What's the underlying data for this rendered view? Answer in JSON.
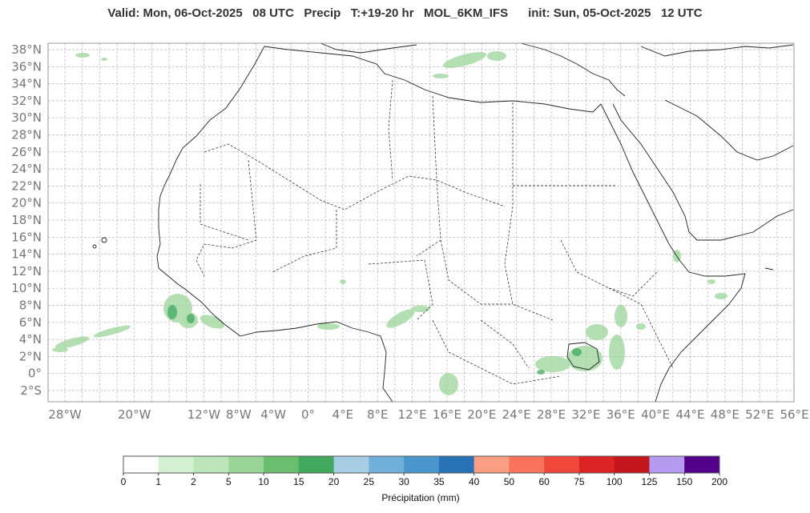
{
  "header": {
    "valid_text": "Valid: Mon, 06-Oct-2025   08 UTC   Precip   T:+19-20 hr   MOL_6KM_IFS      init: Sun, 05-Oct-2025   12 UTC"
  },
  "map": {
    "lat_labels": [
      "38°N",
      "36°N",
      "34°N",
      "32°N",
      "30°N",
      "28°N",
      "26°N",
      "24°N",
      "22°N",
      "20°N",
      "18°N",
      "16°N",
      "14°N",
      "12°N",
      "10°N",
      "8°N",
      "6°N",
      "4°N",
      "2°N",
      "0°",
      "2°S"
    ],
    "lon_labels": [
      "28°W",
      "20°W",
      "12°W",
      "8°W",
      "4°W",
      "0°",
      "4°E",
      "8°E",
      "12°E",
      "16°E",
      "20°E",
      "24°E",
      "28°E",
      "32°E",
      "36°E",
      "40°E",
      "44°E",
      "48°E",
      "52°E",
      "56°E"
    ],
    "grid": true
  },
  "colorbar": {
    "title": "Précipitation (mm)",
    "ticks": [
      "0",
      "1",
      "2",
      "5",
      "10",
      "15",
      "20",
      "25",
      "30",
      "35",
      "40",
      "50",
      "60",
      "75",
      "100",
      "125",
      "150",
      "200"
    ],
    "colors": [
      "#ffffff",
      "#d3f0d2",
      "#bce6b9",
      "#9ad598",
      "#6abf6e",
      "#41a95e",
      "#a6cde4",
      "#6fb0da",
      "#4a96cc",
      "#2873b8",
      "#fb9e84",
      "#f8735a",
      "#ef4838",
      "#dc2425",
      "#c3161c",
      "#b59bf0",
      "#53008a"
    ]
  },
  "precip_color": "#9ad598"
}
